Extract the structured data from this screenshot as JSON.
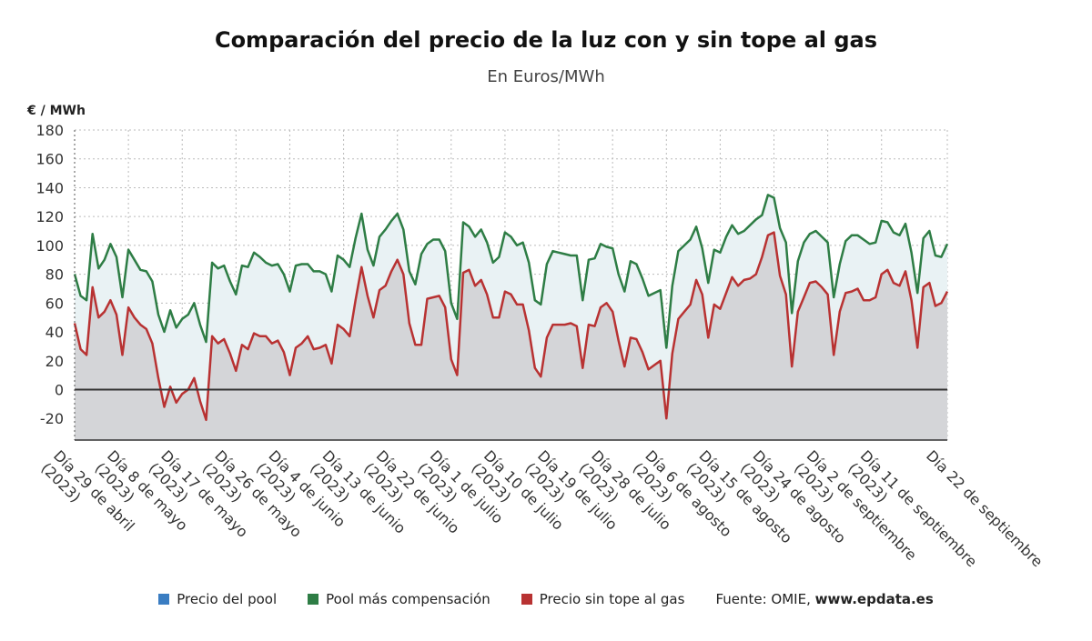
{
  "header": {
    "title": "Comparación del precio de la luz con y sin tope al gas",
    "subtitle": "En Euros/MWh",
    "unit_label": "€ / MWh"
  },
  "legend": {
    "items": [
      {
        "label": "Precio del pool",
        "color": "#3a7dc2"
      },
      {
        "label": "Pool más compensación",
        "color": "#2e7d45"
      },
      {
        "label": "Precio sin tope al gas",
        "color": "#b83232"
      }
    ],
    "source_prefix": "Fuente: OMIE, ",
    "source_site": "www.epdata.es"
  },
  "chart_data": {
    "type": "line",
    "x_range": [
      "2023-04-29",
      "2023-09-22"
    ],
    "ylim": [
      -35,
      180
    ],
    "y_ticks": [
      180,
      160,
      140,
      120,
      100,
      80,
      60,
      40,
      20,
      0,
      -20
    ],
    "x_ticks": [
      {
        "date": "2023-04-29",
        "label": "Día 29 de abril",
        "year": "(2023)"
      },
      {
        "date": "2023-05-08",
        "label": "Día 8 de mayo",
        "year": "(2023)"
      },
      {
        "date": "2023-05-17",
        "label": "Día 17 de mayo",
        "year": "(2023)"
      },
      {
        "date": "2023-05-26",
        "label": "Día 26 de mayo",
        "year": "(2023)"
      },
      {
        "date": "2023-06-04",
        "label": "Día 4 de junio",
        "year": "(2023)"
      },
      {
        "date": "2023-06-13",
        "label": "Día 13 de junio",
        "year": "(2023)"
      },
      {
        "date": "2023-06-22",
        "label": "Día 22 de junio",
        "year": "(2023)"
      },
      {
        "date": "2023-07-01",
        "label": "Día 1 de julio",
        "year": "(2023)"
      },
      {
        "date": "2023-07-10",
        "label": "Día 10 de julio",
        "year": "(2023)"
      },
      {
        "date": "2023-07-19",
        "label": "Día 19 de julio",
        "year": "(2023)"
      },
      {
        "date": "2023-07-28",
        "label": "Día 28 de julio",
        "year": "(2023)"
      },
      {
        "date": "2023-08-06",
        "label": "Día 6 de agosto",
        "year": "(2023)"
      },
      {
        "date": "2023-08-15",
        "label": "Día 15 de agosto",
        "year": "(2023)"
      },
      {
        "date": "2023-08-24",
        "label": "Día 24 de agosto",
        "year": "(2023)"
      },
      {
        "date": "2023-09-02",
        "label": "Día 2 de septiembre",
        "year": "(2023)"
      },
      {
        "date": "2023-09-11",
        "label": "Día 11 de septiembre",
        "year": "(2023)"
      },
      {
        "date": "2023-09-22",
        "label": "Día 22 de septiembre",
        "year": ""
      }
    ],
    "grid": true,
    "series": [
      {
        "name": "Pool más compensación",
        "color": "#2e7d45",
        "values": [
          80,
          65,
          62,
          108,
          84,
          90,
          101,
          92,
          64,
          97,
          90,
          83,
          82,
          75,
          52,
          40,
          55,
          43,
          49,
          52,
          60,
          45,
          33,
          88,
          84,
          86,
          75,
          66,
          86,
          85,
          95,
          92,
          88,
          86,
          87,
          80,
          68,
          86,
          87,
          87,
          82,
          82,
          80,
          68,
          93,
          90,
          85,
          105,
          122,
          97,
          86,
          106,
          111,
          117,
          122,
          111,
          82,
          73,
          94,
          101,
          104,
          104,
          96,
          60,
          49,
          116,
          113,
          106,
          111,
          102,
          88,
          92,
          109,
          106,
          100,
          102,
          88,
          62,
          59,
          87,
          96,
          95,
          94,
          93,
          93,
          62,
          90,
          91,
          101,
          99,
          98,
          80,
          68,
          89,
          87,
          77,
          65,
          67,
          69,
          29,
          72,
          96,
          100,
          104,
          113,
          98,
          74,
          97,
          95,
          106,
          114,
          108,
          110,
          114,
          118,
          121,
          135,
          133,
          112,
          102,
          53,
          89,
          102,
          108,
          110,
          106,
          102,
          64,
          87,
          103,
          107,
          107,
          104,
          101,
          102,
          117,
          116,
          109,
          107,
          115,
          95,
          67,
          105,
          110,
          93,
          92,
          101
        ]
      },
      {
        "name": "Precio sin tope al gas",
        "color": "#b83232",
        "values": [
          46,
          28,
          24,
          71,
          50,
          54,
          62,
          52,
          24,
          57,
          50,
          45,
          42,
          32,
          8,
          -12,
          2,
          -9,
          -3,
          0,
          8,
          -8,
          -21,
          37,
          32,
          35,
          25,
          13,
          31,
          28,
          39,
          37,
          37,
          32,
          34,
          26,
          10,
          29,
          32,
          37,
          28,
          29,
          31,
          18,
          45,
          42,
          37,
          62,
          85,
          65,
          50,
          69,
          72,
          82,
          90,
          80,
          46,
          31,
          31,
          63,
          64,
          65,
          57,
          21,
          10,
          81,
          83,
          72,
          76,
          66,
          50,
          50,
          68,
          66,
          59,
          59,
          41,
          15,
          9,
          36,
          45,
          45,
          45,
          46,
          44,
          15,
          45,
          44,
          57,
          60,
          54,
          34,
          16,
          36,
          35,
          26,
          14,
          17,
          20,
          -20,
          25,
          49,
          54,
          59,
          76,
          66,
          36,
          59,
          56,
          67,
          78,
          72,
          76,
          77,
          80,
          92,
          107,
          109,
          79,
          66,
          16,
          54,
          64,
          74,
          75,
          71,
          66,
          24,
          54,
          67,
          68,
          70,
          62,
          62,
          64,
          80,
          83,
          74,
          72,
          82,
          62,
          29,
          71,
          74,
          58,
          60,
          68
        ]
      }
    ],
    "fills": [
      {
        "between": [
          "Pool más compensación",
          "Precio sin tope al gas"
        ],
        "color": "#e9f2f4"
      },
      {
        "between": [
          "Precio sin tope al gas",
          "axis-bottom"
        ],
        "color": "#d4d5d8"
      }
    ]
  }
}
